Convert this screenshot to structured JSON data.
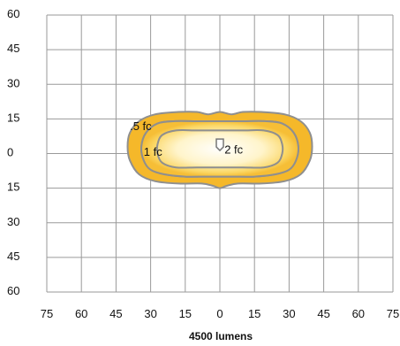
{
  "chart_data": {
    "type": "isolux_contour",
    "caption": "4500 lumens",
    "x_ticks": [
      75,
      60,
      45,
      30,
      15,
      0,
      15,
      30,
      45,
      60,
      75
    ],
    "y_ticks": [
      60,
      45,
      30,
      15,
      0,
      15,
      30,
      45,
      60
    ],
    "xlim": [
      -75,
      75
    ],
    "ylim": [
      -60,
      60
    ],
    "grid": true,
    "contours": [
      {
        "label": ".5 fc",
        "label_at": [
          -39,
          12
        ],
        "points": [
          [
            0,
            -15
          ],
          [
            -3,
            -14
          ],
          [
            -8,
            -13
          ],
          [
            -18,
            -13
          ],
          [
            -28,
            -12
          ],
          [
            -35,
            -9
          ],
          [
            -39,
            -3
          ],
          [
            -40,
            3
          ],
          [
            -39,
            9
          ],
          [
            -35,
            14
          ],
          [
            -28,
            17
          ],
          [
            -18,
            18
          ],
          [
            -10,
            18
          ],
          [
            -5,
            17
          ],
          [
            0,
            18
          ],
          [
            5,
            17
          ],
          [
            10,
            18
          ],
          [
            18,
            18
          ],
          [
            28,
            17
          ],
          [
            35,
            14
          ],
          [
            39,
            9
          ],
          [
            40,
            3
          ],
          [
            39,
            -3
          ],
          [
            35,
            -9
          ],
          [
            28,
            -12
          ],
          [
            18,
            -13
          ],
          [
            8,
            -13
          ],
          [
            3,
            -14
          ]
        ]
      },
      {
        "label": "1 fc",
        "label_at": [
          -33,
          1
        ],
        "points": [
          [
            0,
            -10
          ],
          [
            -6,
            -10
          ],
          [
            -15,
            -10
          ],
          [
            -24,
            -9
          ],
          [
            -30,
            -7
          ],
          [
            -33,
            -3
          ],
          [
            -34,
            3
          ],
          [
            -32,
            9
          ],
          [
            -27,
            13
          ],
          [
            -20,
            14
          ],
          [
            -10,
            14
          ],
          [
            0,
            14
          ],
          [
            10,
            14
          ],
          [
            20,
            14
          ],
          [
            27,
            13
          ],
          [
            32,
            9
          ],
          [
            34,
            3
          ],
          [
            33,
            -3
          ],
          [
            30,
            -7
          ],
          [
            24,
            -9
          ],
          [
            15,
            -10
          ],
          [
            6,
            -10
          ]
        ]
      },
      {
        "label": "2 fc",
        "label_at": [
          2,
          2
        ],
        "points": [
          [
            0,
            -6
          ],
          [
            -10,
            -6
          ],
          [
            -19,
            -6
          ],
          [
            -25,
            -4
          ],
          [
            -27,
            0
          ],
          [
            -27,
            4
          ],
          [
            -25,
            8
          ],
          [
            -19,
            10
          ],
          [
            -10,
            10
          ],
          [
            0,
            10
          ],
          [
            10,
            10
          ],
          [
            19,
            10
          ],
          [
            25,
            8
          ],
          [
            27,
            4
          ],
          [
            27,
            0
          ],
          [
            25,
            -4
          ],
          [
            19,
            -6
          ],
          [
            10,
            -6
          ]
        ]
      }
    ],
    "marker": [
      0,
      4
    ],
    "colors": {
      "outer_fill": "#f5b82a",
      "mid_fill": "#fbe07a",
      "center_fill": "#ffffff",
      "contour_stroke": "#8f8f8f",
      "grid": "#9a9a9a"
    }
  }
}
